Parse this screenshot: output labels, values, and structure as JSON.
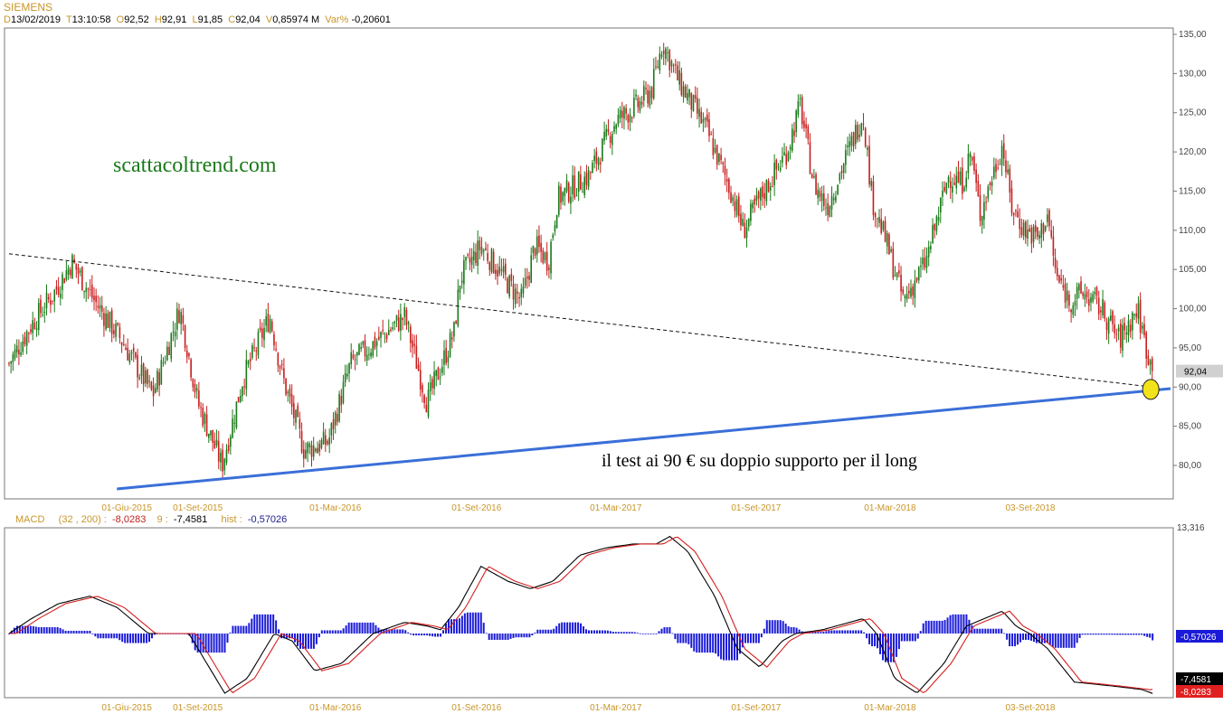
{
  "header": {
    "symbol": "SIEMENS",
    "date_key": "D",
    "date": "13/02/2019",
    "time_key": "T",
    "time": "13:10:58",
    "open_key": "O",
    "open": "92,52",
    "high_key": "H",
    "high": "92,91",
    "low_key": "L",
    "low": "91,85",
    "close_key": "C",
    "close": "92,04",
    "volume_key": "V",
    "volume": "0,85974 M",
    "var_key": "Var%",
    "var": "-0,20601"
  },
  "macd_header": {
    "label": "MACD",
    "params": "(32 , 200) :",
    "macd_value": "-8,0283",
    "signal_label": "9 :",
    "signal_value": "-7,4581",
    "hist_label": "hist :",
    "hist_value": "-0,57026"
  },
  "annotations": {
    "site": "scattacoltrend.com",
    "note": "il test ai 90 € su doppio supporto per il long",
    "last_price_tag": "92,04"
  },
  "colors": {
    "up_candle": "#1a7a1a",
    "down_candle": "#c81e1e",
    "support_line": "#3a6fd8",
    "macd_line": "#000000",
    "signal_line": "#d42020",
    "histogram": "#1a1ad8",
    "axis_label": "#c8962a",
    "marker_fill": "#f2e21a"
  },
  "chart_data": [
    {
      "type": "candlestick",
      "ylim": [
        76,
        136
      ],
      "yticks": [
        80,
        85,
        90,
        95,
        100,
        105,
        110,
        115,
        120,
        125,
        130,
        135
      ],
      "ytick_labels": [
        "80,00",
        "85,00",
        "90,00",
        "95,00",
        "100,00",
        "105,00",
        "110,00",
        "115,00",
        "120,00",
        "125,00",
        "130,00",
        "135,00"
      ],
      "xrange": [
        0,
        1300
      ],
      "xtick_labels": [
        {
          "label": "01-Giu-2015",
          "pos": 136
        },
        {
          "label": "01-Set-2015",
          "pos": 215
        },
        {
          "label": "01-Mar-2016",
          "pos": 368
        },
        {
          "label": "01-Set-2016",
          "pos": 525
        },
        {
          "label": "01-Mar-2017",
          "pos": 680
        },
        {
          "label": "01-Set-2017",
          "pos": 836
        },
        {
          "label": "01-Mar-2018",
          "pos": 985
        },
        {
          "label": "03-Set-2018",
          "pos": 1141
        }
      ],
      "price_path": [
        [
          5,
          93
        ],
        [
          30,
          98
        ],
        [
          55,
          102
        ],
        [
          75,
          106
        ],
        [
          100,
          101
        ],
        [
          130,
          96
        ],
        [
          165,
          89
        ],
        [
          195,
          100
        ],
        [
          215,
          88
        ],
        [
          242,
          80
        ],
        [
          265,
          91
        ],
        [
          295,
          99
        ],
        [
          310,
          91
        ],
        [
          333,
          82
        ],
        [
          360,
          83
        ],
        [
          385,
          93
        ],
        [
          415,
          96
        ],
        [
          445,
          99
        ],
        [
          470,
          88
        ],
        [
          500,
          97
        ],
        [
          507,
          104
        ],
        [
          530,
          108
        ],
        [
          555,
          104
        ],
        [
          575,
          101
        ],
        [
          590,
          108
        ],
        [
          605,
          106
        ],
        [
          615,
          114
        ],
        [
          650,
          117
        ],
        [
          680,
          124
        ],
        [
          705,
          126
        ],
        [
          720,
          128
        ],
        [
          732,
          134
        ],
        [
          750,
          129
        ],
        [
          780,
          123
        ],
        [
          808,
          115
        ],
        [
          822,
          110
        ],
        [
          840,
          114
        ],
        [
          870,
          120
        ],
        [
          885,
          126
        ],
        [
          900,
          116
        ],
        [
          915,
          113
        ],
        [
          935,
          119
        ],
        [
          955,
          125
        ],
        [
          965,
          114
        ],
        [
          982,
          108
        ],
        [
          1000,
          101
        ],
        [
          1025,
          106
        ],
        [
          1050,
          117
        ],
        [
          1065,
          116
        ],
        [
          1075,
          120
        ],
        [
          1085,
          112
        ],
        [
          1110,
          121
        ],
        [
          1120,
          113
        ],
        [
          1135,
          110
        ],
        [
          1150,
          109
        ],
        [
          1160,
          112
        ],
        [
          1170,
          104
        ],
        [
          1185,
          101
        ],
        [
          1200,
          102
        ],
        [
          1220,
          100
        ],
        [
          1240,
          96
        ],
        [
          1260,
          100
        ],
        [
          1270,
          95
        ],
        [
          1277,
          92.04
        ]
      ],
      "downtrend_line": {
        "from": [
          5,
          107
        ],
        "to": [
          1277,
          90
        ]
      },
      "support_line": {
        "from": [
          125,
          77
        ],
        "to": [
          1297,
          89.8
        ]
      },
      "marker": {
        "x": 1275,
        "y": 89.7
      },
      "last_price": 92.04
    },
    {
      "type": "line",
      "name": "MACD (32 , 200)",
      "ylim": [
        -8.6,
        13.316
      ],
      "axis_label": "13,316",
      "xrange": [
        0,
        1300
      ],
      "macd": [
        [
          5,
          0
        ],
        [
          30,
          2
        ],
        [
          60,
          4
        ],
        [
          95,
          5
        ],
        [
          125,
          3.5
        ],
        [
          160,
          0
        ],
        [
          205,
          0
        ],
        [
          245,
          -8
        ],
        [
          270,
          -6
        ],
        [
          300,
          0
        ],
        [
          320,
          -1
        ],
        [
          345,
          -5
        ],
        [
          375,
          -4
        ],
        [
          410,
          0
        ],
        [
          445,
          1.5
        ],
        [
          470,
          1
        ],
        [
          485,
          0.5
        ],
        [
          505,
          3.5
        ],
        [
          530,
          9
        ],
        [
          560,
          7
        ],
        [
          585,
          6
        ],
        [
          610,
          7
        ],
        [
          640,
          10.5
        ],
        [
          670,
          11.5
        ],
        [
          700,
          12
        ],
        [
          725,
          12
        ],
        [
          740,
          13
        ],
        [
          760,
          11
        ],
        [
          790,
          5
        ],
        [
          815,
          -2
        ],
        [
          840,
          -4.5
        ],
        [
          865,
          -1
        ],
        [
          880,
          0
        ],
        [
          910,
          0.5
        ],
        [
          940,
          1.5
        ],
        [
          955,
          2
        ],
        [
          970,
          0
        ],
        [
          990,
          -6
        ],
        [
          1015,
          -8
        ],
        [
          1045,
          -4
        ],
        [
          1070,
          1
        ],
        [
          1090,
          2
        ],
        [
          1110,
          3
        ],
        [
          1125,
          1
        ],
        [
          1140,
          0
        ],
        [
          1160,
          -2
        ],
        [
          1190,
          -6.5
        ],
        [
          1230,
          -7
        ],
        [
          1265,
          -7.5
        ],
        [
          1277,
          -8.0283
        ]
      ],
      "signal_lag": 8,
      "signal_last": -7.4581,
      "hist_last": -0.57026,
      "price_tags": [
        "-0,57026",
        "-7,4581",
        "-8,0283"
      ]
    }
  ]
}
